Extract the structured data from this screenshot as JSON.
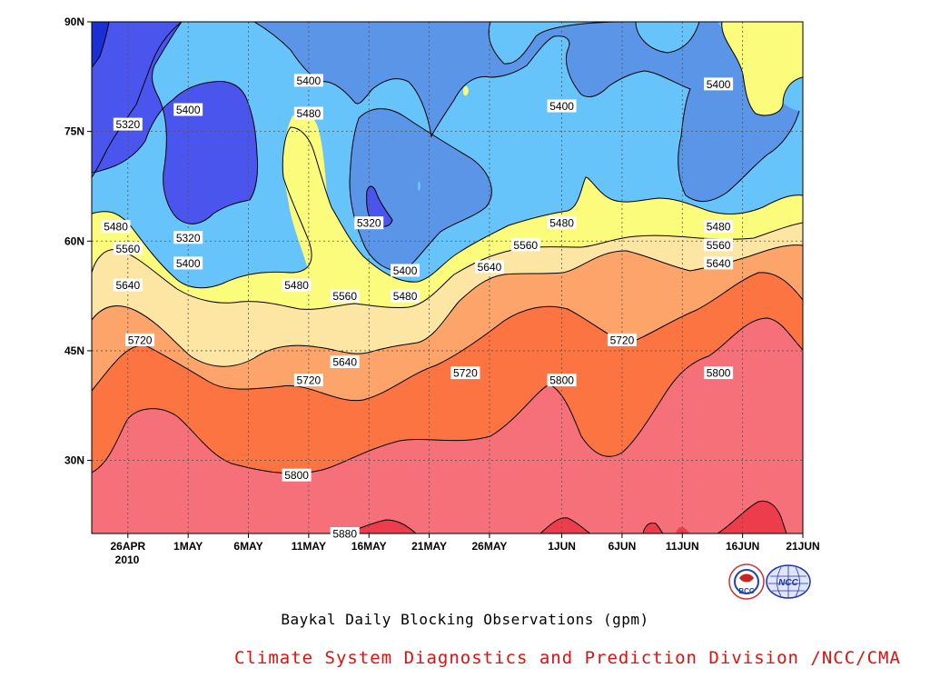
{
  "chart_data": {
    "type": "contour",
    "title": "Baykal Daily Blocking Observations (gpm)",
    "x_ticks": [
      "26APR",
      "1MAY",
      "6MAY",
      "11MAY",
      "16MAY",
      "21MAY",
      "26MAY",
      "1JUN",
      "6JUN",
      "11JUN",
      "16JUN",
      "21JUN"
    ],
    "x_year_label": "2010",
    "y_ticks": [
      "90N",
      "75N",
      "60N",
      "45N",
      "30N"
    ],
    "xlim": [
      "2010-04-23",
      "2010-06-21"
    ],
    "ylim": [
      20,
      90
    ],
    "levels": [
      5320,
      5400,
      5480,
      5560,
      5640,
      5720,
      5800,
      5880
    ],
    "level_colors": [
      "#1a2fd6",
      "#4a55ee",
      "#5b95e8",
      "#66c4fa",
      "#fbfb7c",
      "#fde5a4",
      "#fca46a",
      "#fc7442",
      "#f57078",
      "#ed3c4c"
    ],
    "contour_labels": [
      {
        "value": "5320",
        "date": "2010-04-26",
        "lat": 76
      },
      {
        "value": "5400",
        "date": "2010-05-01",
        "lat": 78
      },
      {
        "value": "5400",
        "date": "2010-05-11",
        "lat": 82
      },
      {
        "value": "5480",
        "date": "2010-05-11",
        "lat": 77.5
      },
      {
        "value": "5400",
        "date": "2010-06-01",
        "lat": 78.5
      },
      {
        "value": "5400",
        "date": "2010-06-14",
        "lat": 81.5
      },
      {
        "value": "5480",
        "date": "2010-04-25",
        "lat": 62
      },
      {
        "value": "5320",
        "date": "2010-05-01",
        "lat": 60.5
      },
      {
        "value": "5320",
        "date": "2010-05-16",
        "lat": 62.5
      },
      {
        "value": "5480",
        "date": "2010-06-01",
        "lat": 62.5
      },
      {
        "value": "5480",
        "date": "2010-06-14",
        "lat": 62
      },
      {
        "value": "5560",
        "date": "2010-04-26",
        "lat": 59
      },
      {
        "value": "5400",
        "date": "2010-05-01",
        "lat": 57
      },
      {
        "value": "5560",
        "date": "2010-05-29",
        "lat": 59.5
      },
      {
        "value": "5560",
        "date": "2010-06-14",
        "lat": 59.5
      },
      {
        "value": "5400",
        "date": "2010-05-19",
        "lat": 56
      },
      {
        "value": "5640",
        "date": "2010-05-26",
        "lat": 56.5
      },
      {
        "value": "5640",
        "date": "2010-06-14",
        "lat": 57
      },
      {
        "value": "5480",
        "date": "2010-05-10",
        "lat": 54
      },
      {
        "value": "5560",
        "date": "2010-05-14",
        "lat": 52.5
      },
      {
        "value": "5480",
        "date": "2010-05-19",
        "lat": 52.5
      },
      {
        "value": "5640",
        "date": "2010-04-26",
        "lat": 54
      },
      {
        "value": "5720",
        "date": "2010-04-27",
        "lat": 46.5
      },
      {
        "value": "5720",
        "date": "2010-06-06",
        "lat": 46.5
      },
      {
        "value": "5640",
        "date": "2010-05-14",
        "lat": 43.5
      },
      {
        "value": "5720",
        "date": "2010-05-24",
        "lat": 42
      },
      {
        "value": "5800",
        "date": "2010-06-14",
        "lat": 42
      },
      {
        "value": "5720",
        "date": "2010-05-11",
        "lat": 41
      },
      {
        "value": "5800",
        "date": "2010-06-01",
        "lat": 41
      },
      {
        "value": "5800",
        "date": "2010-05-10",
        "lat": 28
      },
      {
        "value": "5880",
        "date": "2010-05-14",
        "lat": 20
      }
    ]
  },
  "footer": "Climate System Diagnostics and Prediction Division /NCC/CMA",
  "logos": [
    {
      "name": "bcc-logo",
      "text": "BCC"
    },
    {
      "name": "ncc-logo",
      "text": "NCC"
    }
  ]
}
